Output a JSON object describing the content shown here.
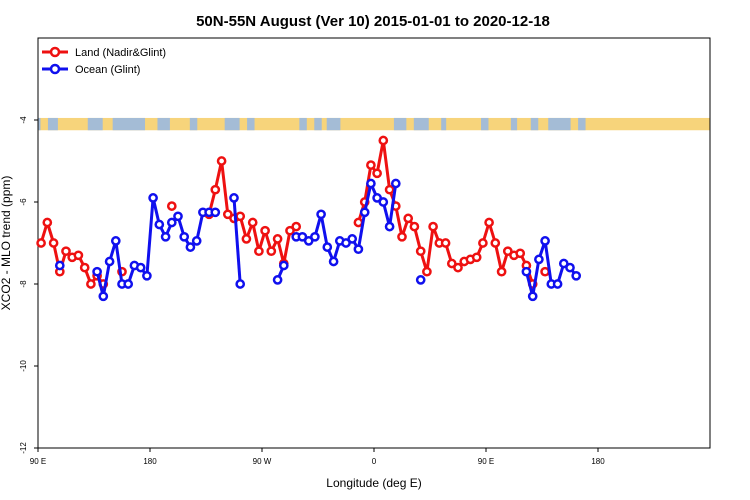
{
  "chart_data": {
    "type": "line",
    "title": "50N-55N August (Ver 10)   2015-01-01 to 2020-12-18",
    "xlabel": "Longitude (deg E)",
    "ylabel": "XCO2 - MLO trend (ppm)",
    "xlim": [
      90,
      630
    ],
    "ylim": [
      -12,
      -2
    ],
    "x_ticks": [
      {
        "value": 90,
        "label": "90 E"
      },
      {
        "value": 180,
        "label": "180"
      },
      {
        "value": 270,
        "label": "90 W"
      },
      {
        "value": 360,
        "label": "0"
      },
      {
        "value": 450,
        "label": "90 E"
      },
      {
        "value": 540,
        "label": "180"
      }
    ],
    "y_ticks": [
      {
        "value": -4,
        "label": "-4"
      },
      {
        "value": -6,
        "label": "-6"
      },
      {
        "value": -8,
        "label": "-8"
      },
      {
        "value": -10,
        "label": "-10"
      },
      {
        "value": -12,
        "label": "-12"
      }
    ],
    "legend_position": "top-left",
    "land_ocean_band": {
      "land_color": "#f7d47b",
      "ocean_color": "#a4bcd6",
      "y_top": -3.95,
      "y_bottom": -4.25
    },
    "series": [
      {
        "name": "Land (Nadir&Glint)",
        "color": "#ee1111",
        "points": [
          [
            92.5,
            -7.0
          ],
          [
            97.5,
            -6.5
          ],
          [
            102.5,
            -7.0
          ],
          [
            107.5,
            -7.7
          ],
          [
            112.5,
            -7.2
          ],
          [
            117.5,
            -7.35
          ],
          [
            122.5,
            -7.3
          ],
          [
            127.5,
            -7.6
          ],
          [
            132.5,
            -8.0
          ],
          [
            137.5,
            -7.8
          ],
          [
            142.5,
            -8.0
          ],
          null,
          [
            157.5,
            -7.7
          ],
          null,
          [
            197.5,
            -6.1
          ],
          null,
          [
            227.5,
            -6.3
          ],
          [
            232.5,
            -5.7
          ],
          [
            237.5,
            -5.0
          ],
          [
            242.5,
            -6.3
          ],
          [
            247.5,
            -6.4
          ],
          [
            252.5,
            -6.35
          ],
          [
            257.5,
            -6.9
          ],
          [
            262.5,
            -6.5
          ],
          [
            267.5,
            -7.2
          ],
          [
            272.5,
            -6.7
          ],
          [
            277.5,
            -7.2
          ],
          [
            282.5,
            -6.9
          ],
          [
            287.5,
            -7.5
          ],
          [
            292.5,
            -6.7
          ],
          [
            297.5,
            -6.6
          ],
          null,
          [
            347.5,
            -6.5
          ],
          [
            352.5,
            -6.0
          ],
          [
            357.5,
            -5.1
          ],
          [
            362.5,
            -5.3
          ],
          [
            367.5,
            -4.5
          ],
          [
            372.5,
            -5.7
          ],
          [
            377.5,
            -6.1
          ],
          [
            382.5,
            -6.85
          ],
          [
            387.5,
            -6.4
          ],
          [
            392.5,
            -6.6
          ],
          [
            397.5,
            -7.2
          ],
          [
            402.5,
            -7.7
          ],
          [
            407.5,
            -6.6
          ],
          [
            412.5,
            -7.0
          ],
          [
            417.5,
            -7.0
          ],
          [
            422.5,
            -7.5
          ],
          [
            427.5,
            -7.6
          ],
          [
            432.5,
            -7.45
          ],
          [
            437.5,
            -7.4
          ],
          [
            442.5,
            -7.35
          ],
          [
            447.5,
            -7.0
          ],
          [
            452.5,
            -6.5
          ],
          [
            457.5,
            -7.0
          ],
          [
            462.5,
            -7.7
          ],
          [
            467.5,
            -7.2
          ],
          [
            472.5,
            -7.3
          ],
          [
            477.5,
            -7.25
          ],
          [
            482.5,
            -7.55
          ],
          [
            487.5,
            -8.0
          ],
          null,
          [
            497.5,
            -7.7
          ]
        ]
      },
      {
        "name": "Ocean (Glint)",
        "color": "#1010ee",
        "points": [
          [
            107.5,
            -7.55
          ],
          null,
          [
            137.5,
            -7.7
          ],
          [
            142.5,
            -8.3
          ],
          [
            147.5,
            -7.45
          ],
          [
            152.5,
            -6.95
          ],
          [
            157.5,
            -8.0
          ],
          [
            162.5,
            -8.0
          ],
          [
            167.5,
            -7.55
          ],
          [
            172.5,
            -7.6
          ],
          [
            177.5,
            -7.8
          ],
          [
            182.5,
            -5.9
          ],
          [
            187.5,
            -6.55
          ],
          [
            192.5,
            -6.85
          ],
          [
            197.5,
            -6.5
          ],
          [
            202.5,
            -6.35
          ],
          [
            207.5,
            -6.85
          ],
          [
            212.5,
            -7.1
          ],
          [
            217.5,
            -6.95
          ],
          [
            222.5,
            -6.25
          ],
          [
            227.5,
            -6.25
          ],
          [
            232.5,
            -6.25
          ],
          null,
          [
            247.5,
            -5.9
          ],
          [
            252.5,
            -8.0
          ],
          null,
          [
            282.5,
            -7.9
          ],
          [
            287.5,
            -7.55
          ],
          null,
          [
            297.5,
            -6.85
          ],
          [
            302.5,
            -6.85
          ],
          [
            307.5,
            -6.95
          ],
          [
            312.5,
            -6.85
          ],
          [
            317.5,
            -6.3
          ],
          [
            322.5,
            -7.1
          ],
          [
            327.5,
            -7.45
          ],
          [
            332.5,
            -6.95
          ],
          [
            337.5,
            -7.0
          ],
          [
            342.5,
            -6.9
          ],
          [
            347.5,
            -7.15
          ],
          [
            352.5,
            -6.25
          ],
          [
            357.5,
            -5.55
          ],
          [
            362.5,
            -5.9
          ],
          [
            367.5,
            -6.0
          ],
          [
            372.5,
            -6.6
          ],
          [
            377.5,
            -5.55
          ],
          null,
          [
            397.5,
            -7.9
          ],
          null,
          [
            482.5,
            -7.7
          ],
          [
            487.5,
            -8.3
          ],
          [
            492.5,
            -7.4
          ],
          [
            497.5,
            -6.95
          ],
          [
            502.5,
            -8.0
          ],
          [
            507.5,
            -8.0
          ],
          [
            512.5,
            -7.5
          ],
          [
            517.5,
            -7.6
          ],
          [
            522.5,
            -7.8
          ]
        ]
      }
    ]
  }
}
